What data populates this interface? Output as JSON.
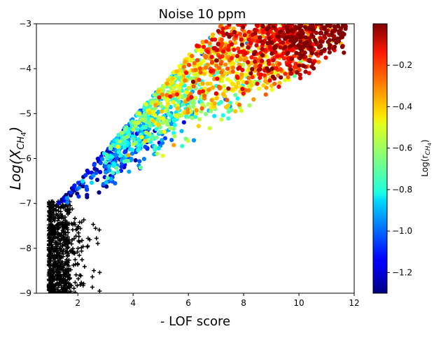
{
  "chart_data": {
    "type": "scatter",
    "title": "Noise 10 ppm",
    "xlabel": "- LOF score",
    "ylabel_main": "Log(X",
    "ylabel_sub": "CH",
    "ylabel_subsub": "4",
    "ylabel_close": ")",
    "xlim": [
      0.5,
      12.0
    ],
    "ylim": [
      -9.0,
      -3.0
    ],
    "xticks": [
      2,
      4,
      6,
      8,
      10,
      12
    ],
    "xtick_labels": [
      "2",
      "4",
      "6",
      "8",
      "10",
      "12"
    ],
    "yticks": [
      -9,
      -8,
      -7,
      -6,
      -5,
      -4,
      -3
    ],
    "ytick_labels": [
      "−9",
      "−8",
      "−7",
      "−6",
      "−5",
      "−4",
      "−3"
    ],
    "colorbar": {
      "colormap": "jet",
      "range": [
        -1.3,
        0.0
      ],
      "ticks": [
        -1.2,
        -1.0,
        -0.8,
        -0.6,
        -0.4,
        -0.2
      ],
      "tick_labels": [
        "−1.2",
        "−1.0",
        "−0.8",
        "−0.6",
        "−0.4",
        "−0.2"
      ],
      "label_main": "Log(r",
      "label_sub": "CH",
      "label_subsub": "4",
      "label_close": ")"
    },
    "series": [
      {
        "name": "outliers",
        "marker": "plus",
        "color": "#000000",
        "description": "dense cluster of black plus markers, LOF 0.9–2.2 (sparse to 2.8), Log(X_CH4) −9 to −7",
        "cluster": {
          "x_range": [
            0.95,
            2.2
          ],
          "y_range": [
            -9.0,
            -6.95
          ],
          "count": 700,
          "sparse_x_max": 2.8
        }
      },
      {
        "name": "detected",
        "marker": "circle",
        "color": "colormap",
        "description": "filled circles colored by Log(r_CH4); low-LOF/low-X points blue, high-LOF/high-X points dark red",
        "cluster": {
          "x_range": [
            1.3,
            11.7
          ],
          "y_range": [
            -7.0,
            -3.0
          ],
          "count": 1800,
          "upper_bound_line": {
            "x0": 1.3,
            "y0": -7.0,
            "x1": 7.0,
            "y1": -3.0
          }
        }
      }
    ],
    "legend": "none",
    "grid": false
  }
}
